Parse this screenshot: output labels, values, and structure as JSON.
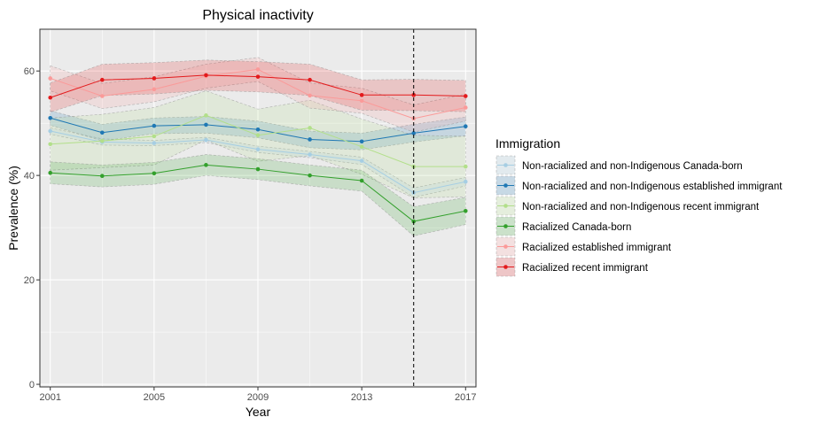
{
  "chart_data": {
    "type": "line",
    "title": "Physical inactivity",
    "xlabel": "Year",
    "ylabel": "Prevalence (%)",
    "xlim": [
      2000.6,
      2017.4
    ],
    "ylim": [
      -0.5,
      68
    ],
    "x_ticks": [
      2001,
      2005,
      2009,
      2013,
      2017
    ],
    "y_ticks": [
      0,
      20,
      40,
      60
    ],
    "grid": true,
    "vline": 2015,
    "legend_title": "Immigration",
    "legend_position": "right",
    "x": [
      2001,
      2003,
      2005,
      2007,
      2009,
      2011,
      2013,
      2015,
      2017
    ],
    "series": [
      {
        "name": "Non-racialized and non-Indigenous Canada-born",
        "color": "#a6cee3",
        "values": [
          48.5,
          46.4,
          46.2,
          46.8,
          45.0,
          44.0,
          42.8,
          36.7,
          38.8
        ],
        "lower": [
          47.9,
          45.8,
          45.7,
          46.3,
          44.4,
          43.4,
          42.1,
          35.8,
          38.0
        ],
        "upper": [
          49.1,
          47.0,
          46.7,
          47.3,
          45.6,
          44.6,
          43.5,
          37.6,
          39.6
        ]
      },
      {
        "name": "Non-racialized and non-Indigenous established immigrant",
        "color": "#1f78b4",
        "values": [
          51.0,
          48.2,
          49.5,
          49.7,
          48.8,
          46.9,
          46.5,
          48.1,
          49.4
        ],
        "lower": [
          49.6,
          46.6,
          48.0,
          48.1,
          47.2,
          45.3,
          44.9,
          46.4,
          47.6
        ],
        "upper": [
          52.4,
          49.8,
          51.0,
          51.3,
          50.4,
          48.5,
          48.1,
          49.8,
          51.2
        ]
      },
      {
        "name": "Non-racialized and non-Indigenous recent immigrant",
        "color": "#b2df8a",
        "values": [
          46.0,
          46.6,
          47.5,
          51.5,
          47.7,
          49.1,
          45.5,
          41.7,
          41.7
        ],
        "lower": [
          41.0,
          41.5,
          42.0,
          46.8,
          42.7,
          43.8,
          40.2,
          35.7,
          35.9
        ],
        "upper": [
          51.0,
          51.7,
          53.0,
          56.2,
          52.7,
          54.4,
          50.8,
          47.7,
          47.5
        ]
      },
      {
        "name": "Racialized Canada-born",
        "color": "#33a02c",
        "values": [
          40.5,
          39.9,
          40.4,
          42.0,
          41.2,
          40.0,
          39.0,
          31.2,
          33.2
        ],
        "lower": [
          38.4,
          37.8,
          38.3,
          40.0,
          39.2,
          38.0,
          37.0,
          28.4,
          30.6
        ],
        "upper": [
          42.6,
          42.0,
          42.5,
          44.0,
          43.2,
          42.0,
          41.0,
          34.0,
          35.8
        ]
      },
      {
        "name": "Racialized established immigrant",
        "color": "#fb9a99",
        "values": [
          58.6,
          55.2,
          56.5,
          59.0,
          60.3,
          55.3,
          54.3,
          50.9,
          53.0
        ],
        "lower": [
          56.2,
          52.8,
          54.1,
          56.7,
          58.0,
          52.9,
          51.9,
          48.3,
          50.4
        ],
        "upper": [
          61.0,
          57.6,
          58.9,
          61.3,
          62.6,
          57.7,
          56.7,
          53.5,
          55.6
        ]
      },
      {
        "name": "Racialized recent immigrant",
        "color": "#e31a1c",
        "values": [
          54.9,
          58.3,
          58.6,
          59.2,
          58.9,
          58.3,
          55.4,
          55.4,
          55.2
        ],
        "lower": [
          52.1,
          55.3,
          55.6,
          56.3,
          56.0,
          55.3,
          52.5,
          52.4,
          52.2
        ],
        "upper": [
          57.7,
          61.3,
          61.6,
          62.1,
          61.8,
          61.3,
          58.3,
          58.4,
          58.2
        ]
      }
    ]
  }
}
